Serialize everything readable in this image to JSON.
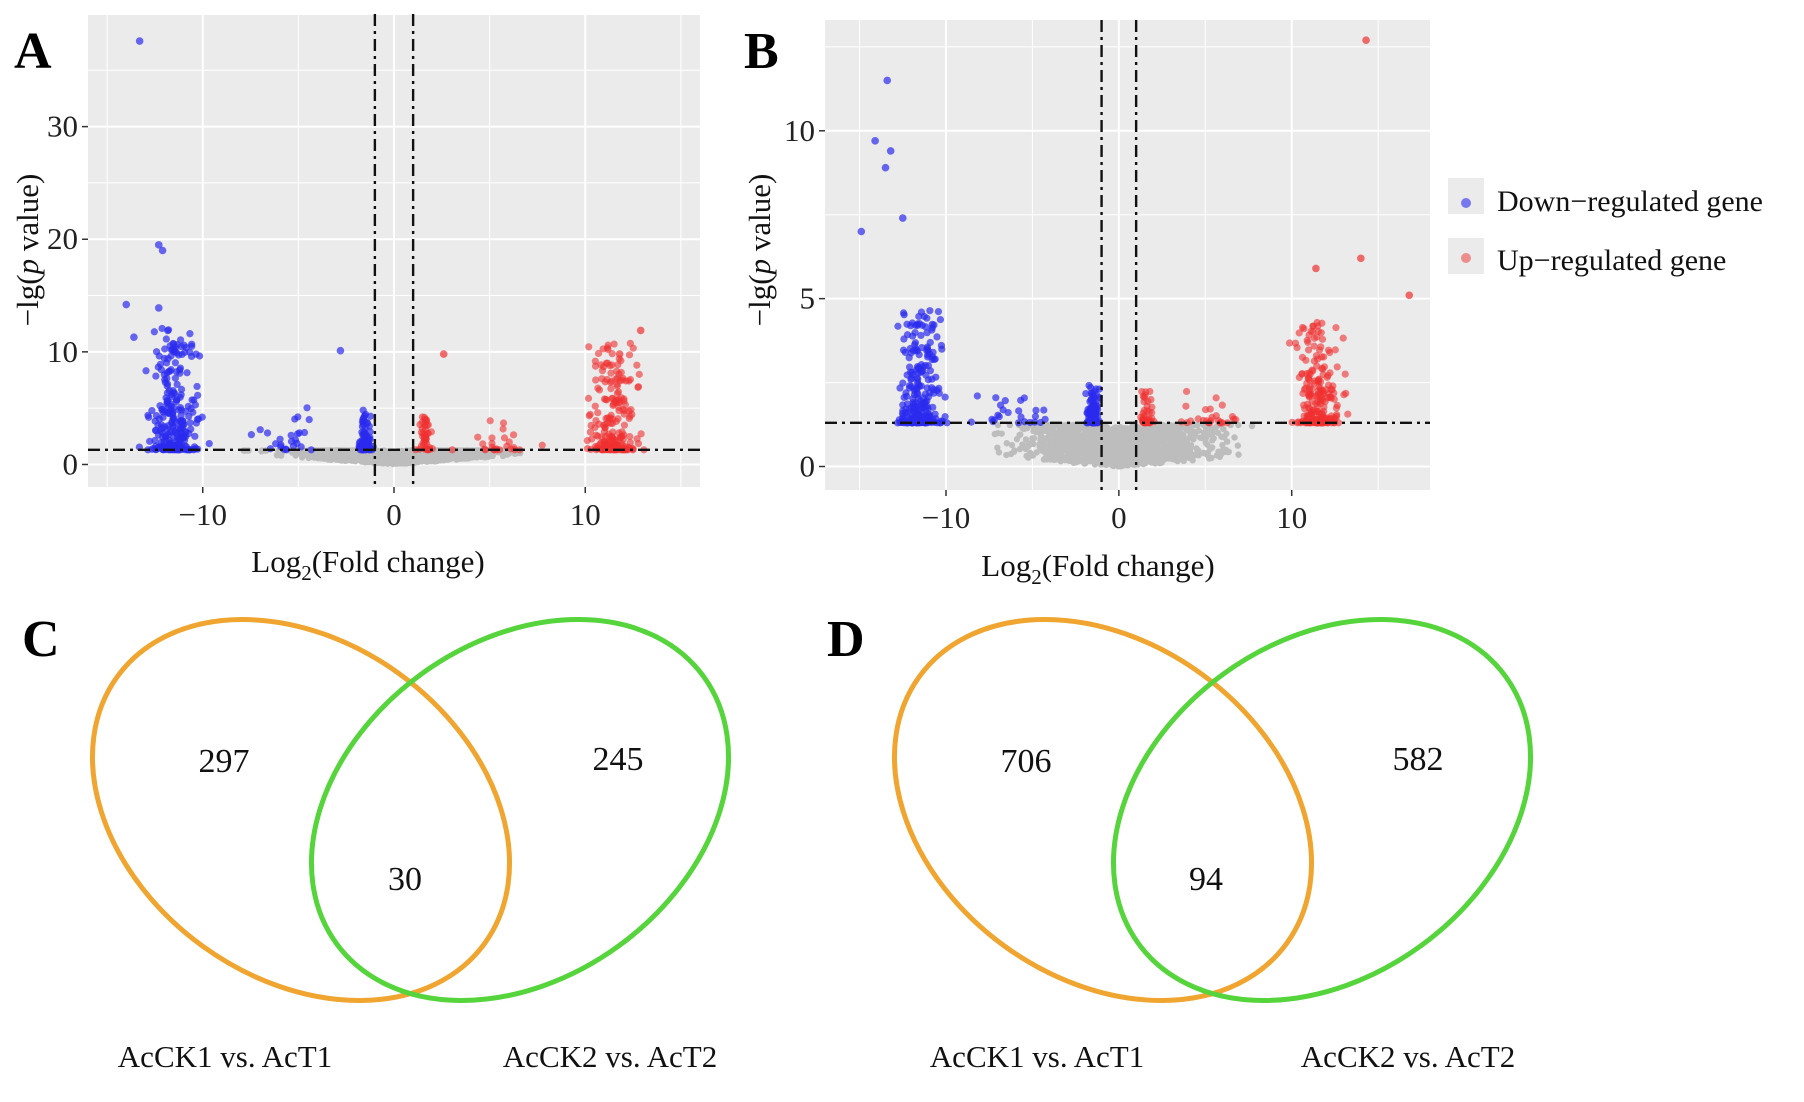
{
  "colors": {
    "panel_bg": "#ebebeb",
    "grid": "#ffffff",
    "down": "#2b2bf0",
    "up": "#f03030",
    "neutral": "#bdbdbd",
    "venn_left": "#f0a530",
    "venn_right": "#55d43c"
  },
  "chart_data": [
    {
      "panel": "A",
      "type": "scatter",
      "subtype": "volcano",
      "xlabel_base": "Log",
      "xlabel_sub": "2",
      "xlabel_rest": "(Fold change)",
      "ylabel_pre": "−lg(",
      "ylabel_italic": "p",
      "ylabel_post": " value)",
      "xlim": [
        -16,
        16
      ],
      "ylim": [
        -2,
        40
      ],
      "x_ticks": [
        -10,
        0,
        10
      ],
      "x_tick_labels": [
        "−10",
        "0",
        "10"
      ],
      "y_ticks": [
        0,
        10,
        20,
        30
      ],
      "y_tick_labels": [
        "0",
        "10",
        "20",
        "30"
      ],
      "log2fc_threshold": 1,
      "pvalue_line": 1.3,
      "notable_points": [
        {
          "x": -13.3,
          "y": 37.6,
          "group": "down"
        },
        {
          "x": -12.3,
          "y": 19.5,
          "group": "down"
        },
        {
          "x": -12.1,
          "y": 19.0,
          "group": "down"
        },
        {
          "x": -14.0,
          "y": 14.2,
          "group": "down"
        },
        {
          "x": -12.3,
          "y": 13.9,
          "group": "down"
        },
        {
          "x": -13.6,
          "y": 11.3,
          "group": "down"
        },
        {
          "x": -2.8,
          "y": 10.1,
          "group": "down"
        },
        {
          "x": 2.6,
          "y": 9.8,
          "group": "up"
        },
        {
          "x": 12.9,
          "y": 11.9,
          "group": "up"
        },
        {
          "x": 11.8,
          "y": 9.8,
          "group": "up"
        }
      ]
    },
    {
      "panel": "B",
      "type": "scatter",
      "subtype": "volcano",
      "xlabel_base": "Log",
      "xlabel_sub": "2",
      "xlabel_rest": "(Fold change)",
      "ylabel_pre": "−lg(",
      "ylabel_italic": "p",
      "ylabel_post": " value)",
      "xlim": [
        -17,
        18
      ],
      "ylim": [
        -0.7,
        13.3
      ],
      "x_ticks": [
        -10,
        0,
        10
      ],
      "x_tick_labels": [
        "−10",
        "0",
        "10"
      ],
      "y_ticks": [
        0,
        5,
        10
      ],
      "y_tick_labels": [
        "0",
        "5",
        "10"
      ],
      "log2fc_threshold": 1,
      "pvalue_line": 1.3,
      "notable_points": [
        {
          "x": 14.3,
          "y": 12.7,
          "group": "up"
        },
        {
          "x": -13.4,
          "y": 11.5,
          "group": "down"
        },
        {
          "x": -14.1,
          "y": 9.7,
          "group": "down"
        },
        {
          "x": -13.2,
          "y": 9.4,
          "group": "down"
        },
        {
          "x": -13.5,
          "y": 8.9,
          "group": "down"
        },
        {
          "x": -14.9,
          "y": 7.0,
          "group": "down"
        },
        {
          "x": -12.5,
          "y": 7.4,
          "group": "down"
        },
        {
          "x": 14.0,
          "y": 6.2,
          "group": "up"
        },
        {
          "x": 16.8,
          "y": 5.1,
          "group": "up"
        },
        {
          "x": 11.4,
          "y": 5.9,
          "group": "up"
        }
      ]
    },
    {
      "panel": "C",
      "type": "venn",
      "sets": [
        "AcCK1 vs. AcT1",
        "AcCK2 vs. AcT2"
      ],
      "counts": {
        "left_only": "297",
        "overlap": "30",
        "right_only": "245"
      }
    },
    {
      "panel": "D",
      "type": "venn",
      "sets": [
        "AcCK1 vs. AcT1",
        "AcCK2 vs. AcT2"
      ],
      "counts": {
        "left_only": "706",
        "overlap": "94",
        "right_only": "582"
      }
    }
  ],
  "legend": {
    "items": [
      {
        "label": "Down−regulated gene",
        "group": "down"
      },
      {
        "label": "Up−regulated gene",
        "group": "up"
      }
    ]
  }
}
